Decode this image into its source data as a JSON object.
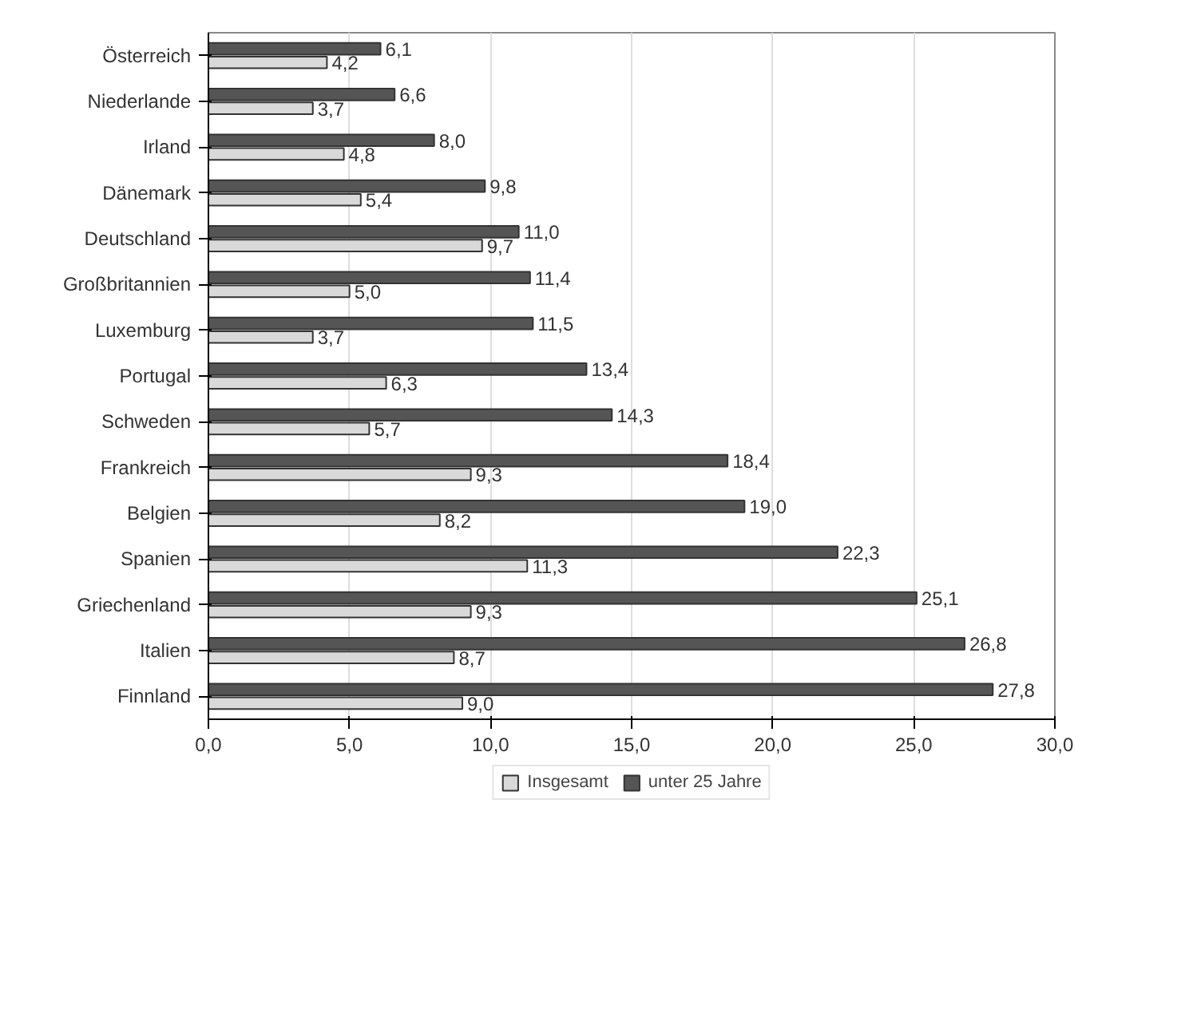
{
  "chart_data": {
    "type": "bar",
    "orientation": "horizontal",
    "categories": [
      "Österreich",
      "Niederlande",
      "Irland",
      "Dänemark",
      "Deutschland",
      "Großbritannien",
      "Luxemburg",
      "Portugal",
      "Schweden",
      "Frankreich",
      "Belgien",
      "Spanien",
      "Griechenland",
      "Italien",
      "Finnland"
    ],
    "series": [
      {
        "name": "Insgesamt",
        "color": "#d9d9d9",
        "values": [
          4.2,
          3.7,
          4.8,
          5.4,
          9.7,
          5.0,
          3.7,
          6.3,
          5.7,
          9.3,
          8.2,
          11.3,
          9.3,
          8.7,
          9.0
        ],
        "value_labels": [
          "4,2",
          "3,7",
          "4,8",
          "5,4",
          "9,7",
          "5,0",
          "3,7",
          "6,3",
          "5,7",
          "9,3",
          "8,2",
          "11,3",
          "9,3",
          "8,7",
          "9,0"
        ]
      },
      {
        "name": "unter 25 Jahre",
        "color": "#555555",
        "values": [
          6.1,
          6.6,
          8.0,
          9.8,
          11.0,
          11.4,
          11.5,
          13.4,
          14.3,
          18.4,
          19.0,
          22.3,
          25.1,
          26.8,
          27.8
        ],
        "value_labels": [
          "6,1",
          "6,6",
          "8,0",
          "9,8",
          "11,0",
          "11,4",
          "11,5",
          "13,4",
          "14,3",
          "18,4",
          "19,0",
          "22,3",
          "25,1",
          "26,8",
          "27,8"
        ]
      }
    ],
    "xlim": [
      0,
      30
    ],
    "xticks": [
      {
        "value": 0,
        "label": "0,0"
      },
      {
        "value": 5,
        "label": "5,0"
      },
      {
        "value": 10,
        "label": "10,0"
      },
      {
        "value": 15,
        "label": "15,0"
      },
      {
        "value": 20,
        "label": "20,0"
      },
      {
        "value": 25,
        "label": "25,0"
      },
      {
        "value": 30,
        "label": "30,0"
      }
    ],
    "grid": "x",
    "legend": "bottom"
  }
}
